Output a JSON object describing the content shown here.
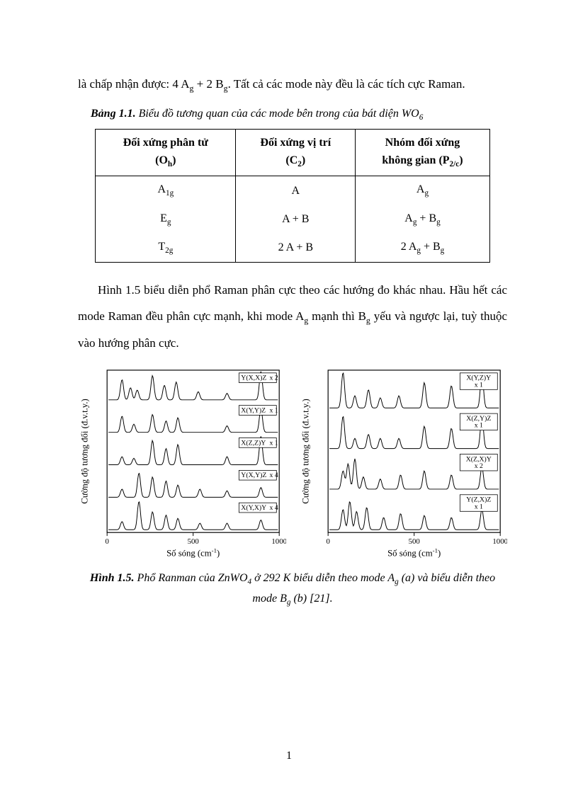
{
  "paragraph1_prefix": "là chấp nhận được: 4 A",
  "paragraph1_mid": " + 2 B",
  "paragraph1_suffix": ". Tất cả các mode này đều là các tích cực Raman.",
  "table_caption_prefix": "Bảng 1.1.",
  "table_caption_body": " Biểu đồ tương quan của các mode bên trong của bát diện WO",
  "table": {
    "headers": {
      "col1_line1": "Đối xứng phân tử",
      "col1_line2_pre": "(O",
      "col1_line2_sub": "h",
      "col1_line2_post": ")",
      "col2_line1": "Đối xứng vị trí",
      "col2_line2_pre": "(C",
      "col2_line2_sub": "2",
      "col2_line2_post": ")",
      "col3_line1": "Nhóm đối xứng",
      "col3_line2_pre": "không gian  (P",
      "col3_line2_sub": "2/c",
      "col3_line2_post": ")"
    },
    "rows": [
      {
        "c1": "A",
        "c1_sub": "1g",
        "c2": "A",
        "c3_a": "A",
        "c3_a_sub": "g",
        "c3_plus": "",
        "c3_b": "",
        "c3_b_sub": ""
      },
      {
        "c1": "E",
        "c1_sub": "g",
        "c2": "A + B",
        "c3_a": "A",
        "c3_a_sub": "g",
        "c3_plus": " + ",
        "c3_b": "B",
        "c3_b_sub": "g"
      },
      {
        "c1": "T",
        "c1_sub": "2g",
        "c2": "2 A + B",
        "c3_a": "2 A",
        "c3_a_sub": "g",
        "c3_plus": " + ",
        "c3_b": "B",
        "c3_b_sub": "g"
      }
    ]
  },
  "paragraph2_a": "Hình 1.5 biểu diễn phổ Raman phân cực theo các hướng đo khác nhau. Hầu hết các mode Raman đều phân cực mạnh, khi mode A",
  "paragraph2_b": " mạnh thì B",
  "paragraph2_c": " yếu và ngược lại, tuỳ thuộc vào hướng phân cực.",
  "figure": {
    "y_label": "Cường độ tương đối (đ.v.t.y.)",
    "x_label_pre": "Số sóng (cm",
    "x_label_sup": "-1",
    "x_label_post": ")",
    "x_ticks": [
      "0",
      "500",
      "1000"
    ],
    "colors": {
      "stroke": "#000000",
      "bg": "#ffffff"
    },
    "panel_a": {
      "traces": [
        {
          "label": "Y(X,X)Z",
          "mult": "x 2"
        },
        {
          "label": "X(Y,Y)Z",
          "mult": "x 1"
        },
        {
          "label": "X(Z,Z)Y",
          "mult": "x 1"
        },
        {
          "label": "Y(X,Y)Z",
          "mult": "x 4"
        },
        {
          "label": "X(Y,X)Y",
          "mult": "x 4"
        }
      ]
    },
    "panel_b": {
      "traces": [
        {
          "label": "X(Y,Z)Y",
          "mult": "x 1"
        },
        {
          "label": "X(Z,Y)Z",
          "mult": "x 1"
        },
        {
          "label": "X(Z,X)Y",
          "mult": "x 2"
        },
        {
          "label": "Y(Z,X)Z",
          "mult": "x 1"
        }
      ]
    }
  },
  "fig_caption_prefix": "Hình 1.5.",
  "fig_caption_a": " Phổ Ranman của ZnWO",
  "fig_caption_b": " ở 292 K biểu diễn theo mode A",
  "fig_caption_c": " (a) và biểu diễn theo mode B",
  "fig_caption_d": " (b) [21].",
  "page_number": "1"
}
